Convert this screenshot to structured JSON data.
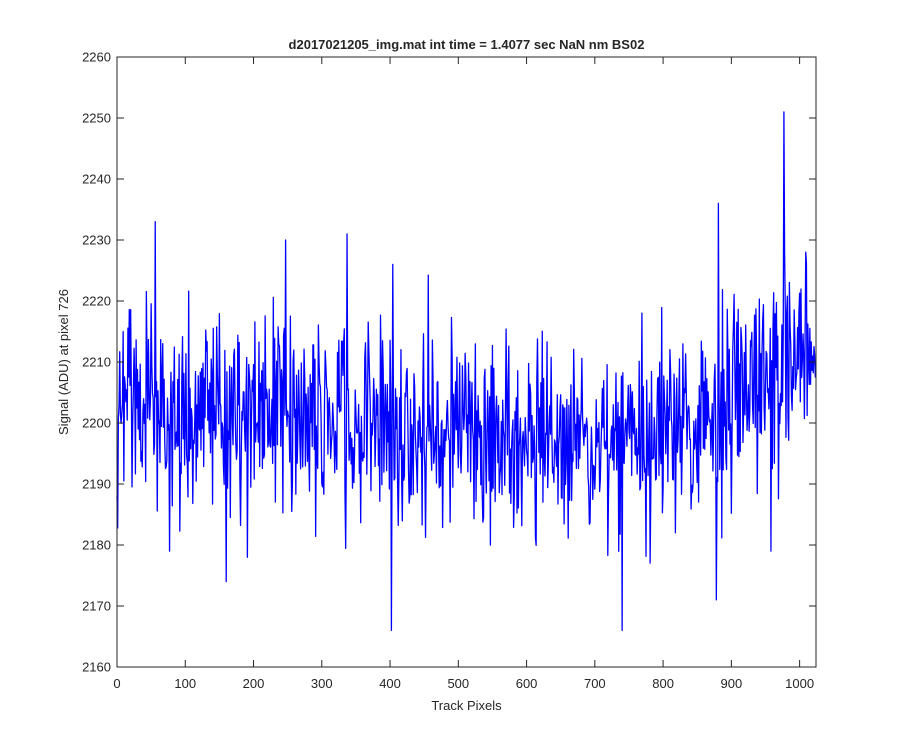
{
  "chart_data": {
    "type": "line",
    "title": "d2017021205_img.mat int time = 1.4077 sec  NaN nm BS02",
    "xlabel": "Track Pixels",
    "ylabel": "Signal (ADU) at pixel 726",
    "xlim": [
      0,
      1024
    ],
    "ylim": [
      2160,
      2260
    ],
    "xticks": [
      0,
      100,
      200,
      300,
      400,
      500,
      600,
      700,
      800,
      900,
      1000
    ],
    "yticks": [
      2160,
      2170,
      2180,
      2190,
      2200,
      2210,
      2220,
      2230,
      2240,
      2250,
      2260
    ],
    "grid": false,
    "series": [
      {
        "color": "#0000ff",
        "n_points": 1024,
        "mean_profile": {
          "x": [
            0,
            100,
            200,
            300,
            400,
            500,
            600,
            700,
            800,
            900,
            950,
            1000,
            1023
          ],
          "y": [
            2203,
            2202,
            2202,
            2201,
            2200,
            2198,
            2197,
            2197,
            2199,
            2202,
            2208,
            2210,
            2210
          ]
        },
        "spikes": [
          {
            "x": 56,
            "y": 2233
          },
          {
            "x": 77,
            "y": 2179
          },
          {
            "x": 160,
            "y": 2174
          },
          {
            "x": 247,
            "y": 2230
          },
          {
            "x": 337,
            "y": 2231
          },
          {
            "x": 402,
            "y": 2166
          },
          {
            "x": 404,
            "y": 2226
          },
          {
            "x": 740,
            "y": 2166
          },
          {
            "x": 818,
            "y": 2182
          },
          {
            "x": 878,
            "y": 2171
          },
          {
            "x": 881,
            "y": 2236
          },
          {
            "x": 958,
            "y": 2179
          },
          {
            "x": 977,
            "y": 2251
          }
        ],
        "noise_std": 8
      }
    ]
  }
}
